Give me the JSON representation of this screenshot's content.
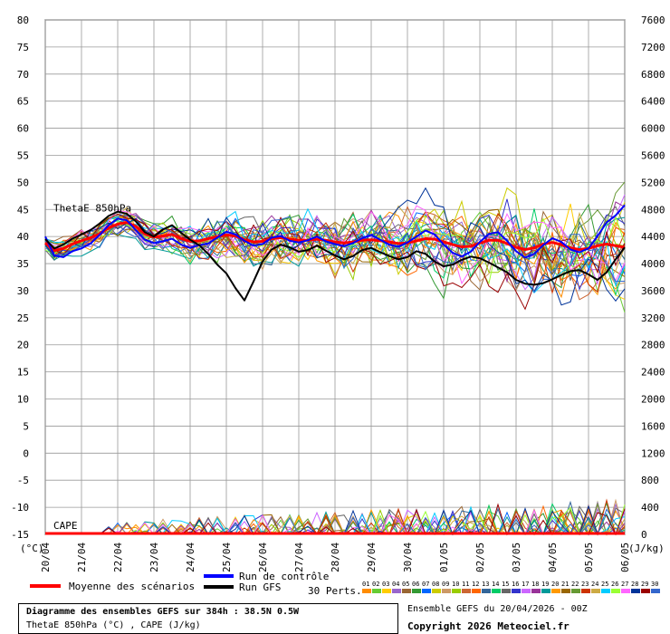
{
  "chart_data": {
    "type": "line",
    "title": "Diagramme des ensembles GEFS sur 384h : 38.5N 0.5W",
    "subtitle": "ThetaE 850hPa (°C) , CAPE (J/kg)",
    "left_axis": {
      "unit": "(°C)",
      "ylim": [
        -15,
        80
      ],
      "ticks": [
        80,
        75,
        70,
        65,
        60,
        55,
        50,
        45,
        40,
        35,
        30,
        25,
        20,
        15,
        10,
        5,
        0,
        -5,
        -10,
        -15
      ]
    },
    "right_axis": {
      "unit": "(J/kg)",
      "ylim": [
        0,
        7600
      ],
      "ticks": [
        7600,
        7200,
        6800,
        6400,
        6000,
        5600,
        5200,
        4800,
        4400,
        4000,
        3600,
        3200,
        2800,
        2400,
        2000,
        1600,
        1200,
        800,
        400,
        0
      ]
    },
    "x_ticks": [
      "20/04",
      "21/04",
      "22/04",
      "23/04",
      "24/04",
      "25/04",
      "26/04",
      "27/04",
      "28/04",
      "29/04",
      "30/04",
      "01/05",
      "02/05",
      "03/05",
      "04/05",
      "05/05",
      "06/05"
    ],
    "panel_labels": {
      "thetae": "ThetaE 850hPa",
      "cape": "CAPE"
    },
    "grid": true,
    "series": [
      {
        "name": "Moyenne des scénarios",
        "color": "#ff0000",
        "values": [
          38.8,
          37.4,
          37.8,
          38.6,
          39.2,
          39.8,
          40.5,
          41.6,
          42.3,
          42.6,
          41.9,
          40.5,
          39.9,
          40.1,
          40.4,
          39.6,
          39.1,
          39.2,
          39.6,
          40.0,
          40.3,
          40.1,
          39.4,
          39.0,
          39.1,
          39.6,
          39.8,
          39.5,
          39.3,
          39.3,
          39.5,
          39.3,
          39.0,
          38.8,
          39.0,
          39.3,
          39.4,
          39.2,
          39.0,
          38.7,
          38.8,
          39.2,
          39.6,
          39.5,
          39.0,
          38.5,
          38.1,
          38.2,
          38.8,
          39.3,
          39.3,
          38.7,
          38.0,
          37.6,
          37.9,
          38.6,
          38.9,
          38.5,
          37.9,
          37.6,
          37.8,
          38.3,
          38.6,
          38.3,
          38.0
        ]
      },
      {
        "name": "Run de contrôle",
        "color": "#0000ff",
        "values": [
          40.0,
          36.5,
          36.2,
          37.3,
          37.8,
          38.7,
          40.3,
          42.1,
          43.3,
          43.0,
          41.2,
          39.4,
          38.8,
          39.1,
          39.6,
          38.5,
          37.9,
          38.4,
          38.7,
          39.8,
          40.9,
          40.4,
          39.2,
          38.3,
          38.6,
          39.8,
          40.1,
          39.2,
          38.9,
          39.3,
          40.0,
          39.1,
          38.6,
          38.2,
          38.8,
          39.7,
          40.3,
          39.4,
          38.5,
          38.1,
          38.9,
          40.0,
          41.1,
          40.4,
          38.5,
          37.0,
          36.3,
          37.2,
          39.0,
          40.5,
          40.8,
          39.2,
          37.3,
          36.1,
          36.8,
          38.4,
          39.7,
          39.0,
          37.6,
          37.1,
          37.8,
          40.1,
          42.6,
          43.9,
          45.8
        ]
      },
      {
        "name": "Run GFS",
        "color": "#000000",
        "values": [
          39.5,
          37.8,
          38.5,
          39.6,
          40.4,
          41.2,
          42.4,
          43.8,
          44.6,
          44.2,
          42.8,
          40.8,
          40.0,
          41.3,
          42.1,
          40.7,
          39.4,
          38.4,
          36.8,
          34.8,
          33.2,
          30.5,
          28.2,
          31.7,
          35.4,
          37.6,
          38.5,
          38.0,
          37.2,
          37.5,
          38.3,
          37.4,
          36.5,
          35.8,
          36.4,
          37.5,
          37.9,
          37.1,
          36.4,
          35.8,
          36.2,
          37.3,
          36.8,
          35.4,
          34.5,
          34.8,
          35.7,
          36.3,
          36.0,
          35.2,
          34.3,
          33.4,
          32.0,
          31.3,
          31.1,
          31.4,
          32.1,
          32.9,
          33.6,
          33.8,
          33.0,
          32.0,
          33.4,
          35.8,
          38.0
        ]
      }
    ],
    "perturbations": {
      "label": "30 Perts.",
      "codes": [
        "01",
        "02",
        "03",
        "04",
        "05",
        "06",
        "07",
        "08",
        "09",
        "10",
        "11",
        "12",
        "13",
        "14",
        "15",
        "16",
        "17",
        "18",
        "19",
        "20",
        "21",
        "22",
        "23",
        "24",
        "25",
        "26",
        "27",
        "28",
        "29",
        "30"
      ],
      "colors": [
        "#ff8c00",
        "#66cc33",
        "#ffcc00",
        "#9966cc",
        "#996633",
        "#339933",
        "#0066ff",
        "#cccc00",
        "#cc9966",
        "#99cc00",
        "#cc6633",
        "#ff6600",
        "#336699",
        "#00cc66",
        "#666666",
        "#3333cc",
        "#cc66ff",
        "#993399",
        "#009999",
        "#ff9900",
        "#996600",
        "#669933",
        "#cc3300",
        "#ccaa44",
        "#00ccff",
        "#99ff33",
        "#ff66ff",
        "#003399",
        "#990000",
        "#3366cc"
      ]
    }
  },
  "legend": {
    "mean_label": "Moyenne des scénarios",
    "control_label": "Run de contrôle",
    "gfs_label": "Run GFS"
  },
  "footer": {
    "title": "Diagramme des ensembles GEFS sur 384h : 38.5N 0.5W",
    "subtitle": "ThetaE 850hPa (°C) , CAPE (J/kg)",
    "ensemble": "Ensemble GEFS du 20/04/2026 - 00Z",
    "copyright": "Copyright 2026 Meteociel.fr"
  }
}
